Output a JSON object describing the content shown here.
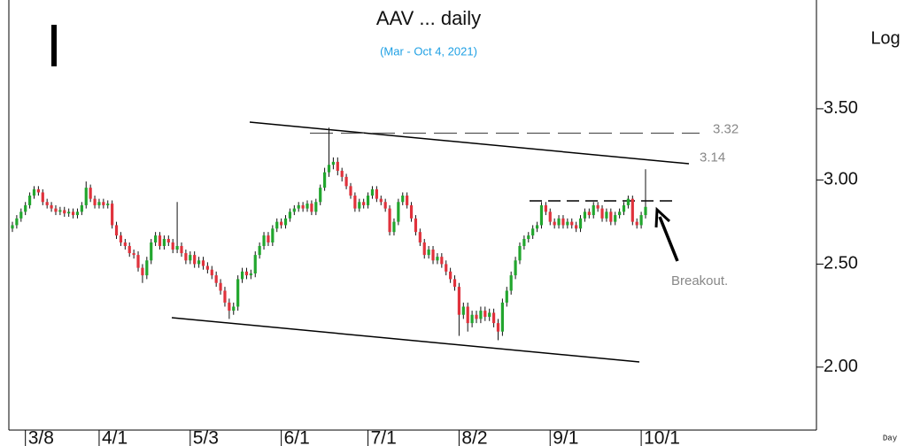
{
  "chart_data": {
    "type": "candlestick",
    "title": "AAV ... daily",
    "subtitle": "(Mar - Oct 4, 2021)",
    "y_label": "Log",
    "x_label": "Day",
    "annotation": "Breakout.",
    "levels": [
      3.32,
      3.14
    ],
    "log": true,
    "up_color": "#22a62e",
    "down_color": "#e0323c",
    "ylim": [
      1.745,
      4.43
    ],
    "yticks": [
      {
        "value": 2.0,
        "label": "2.00"
      },
      {
        "value": 2.5,
        "label": "2.50"
      },
      {
        "value": 3.0,
        "label": "3.00"
      },
      {
        "value": 3.5,
        "label": "3.50"
      }
    ],
    "categories": [
      null,
      null,
      null,
      "3/8",
      null,
      null,
      null,
      null,
      null,
      null,
      null,
      null,
      null,
      null,
      null,
      null,
      null,
      null,
      null,
      null,
      "4/1",
      null,
      null,
      null,
      null,
      null,
      null,
      null,
      null,
      null,
      null,
      null,
      null,
      null,
      null,
      null,
      null,
      null,
      null,
      null,
      null,
      "5/3",
      null,
      null,
      null,
      null,
      null,
      null,
      null,
      null,
      null,
      null,
      null,
      null,
      null,
      null,
      null,
      null,
      null,
      null,
      null,
      null,
      "6/1",
      null,
      null,
      null,
      null,
      null,
      null,
      null,
      null,
      null,
      null,
      null,
      null,
      null,
      null,
      null,
      null,
      null,
      null,
      null,
      "7/1",
      null,
      null,
      null,
      null,
      null,
      null,
      null,
      null,
      null,
      null,
      null,
      null,
      null,
      null,
      null,
      null,
      null,
      null,
      null,
      null,
      "8/2",
      null,
      null,
      null,
      null,
      null,
      null,
      null,
      null,
      null,
      null,
      null,
      null,
      null,
      null,
      null,
      null,
      null,
      null,
      null,
      null,
      "9/1",
      null,
      null,
      null,
      null,
      null,
      null,
      null,
      null,
      null,
      null,
      null,
      null,
      null,
      null,
      null,
      null,
      null,
      null,
      null,
      null,
      "10/1",
      null
    ],
    "open": [
      2.7,
      2.72,
      2.76,
      2.8,
      2.84,
      2.9,
      2.94,
      2.92,
      2.86,
      2.84,
      2.82,
      2.8,
      2.81,
      2.79,
      2.8,
      2.78,
      2.8,
      2.84,
      2.95,
      2.88,
      2.84,
      2.86,
      2.84,
      2.85,
      2.72,
      2.66,
      2.62,
      2.6,
      2.56,
      2.55,
      2.48,
      2.44,
      2.52,
      2.62,
      2.66,
      2.6,
      2.64,
      2.62,
      2.58,
      2.6,
      2.56,
      2.52,
      2.55,
      2.5,
      2.52,
      2.49,
      2.47,
      2.44,
      2.4,
      2.36,
      2.3,
      2.26,
      2.28,
      2.42,
      2.46,
      2.44,
      2.45,
      2.55,
      2.6,
      2.66,
      2.62,
      2.7,
      2.74,
      2.72,
      2.76,
      2.8,
      2.82,
      2.84,
      2.82,
      2.85,
      2.8,
      2.86,
      2.95,
      3.05,
      3.1,
      3.12,
      3.06,
      3.02,
      2.96,
      2.9,
      2.82,
      2.86,
      2.84,
      2.9,
      2.94,
      2.88,
      2.86,
      2.82,
      2.68,
      2.74,
      2.86,
      2.9,
      2.84,
      2.76,
      2.68,
      2.62,
      2.55,
      2.58,
      2.52,
      2.54,
      2.5,
      2.46,
      2.42,
      2.38,
      2.24,
      2.28,
      2.2,
      2.24,
      2.22,
      2.26,
      2.23,
      2.25,
      2.2,
      2.16,
      2.3,
      2.36,
      2.44,
      2.52,
      2.6,
      2.64,
      2.66,
      2.7,
      2.72,
      2.84,
      2.8,
      2.74,
      2.72,
      2.76,
      2.72,
      2.74,
      2.72,
      2.7,
      2.76,
      2.8,
      2.78,
      2.84,
      2.82,
      2.76,
      2.8,
      2.74,
      2.78,
      2.8,
      2.84,
      2.88,
      2.74,
      2.72,
      2.78
    ],
    "high": [
      2.74,
      2.78,
      2.82,
      2.86,
      2.92,
      2.96,
      2.96,
      2.94,
      2.88,
      2.86,
      2.84,
      2.83,
      2.83,
      2.82,
      2.82,
      2.82,
      2.86,
      2.99,
      2.97,
      2.9,
      2.88,
      2.88,
      2.87,
      2.87,
      2.74,
      2.68,
      2.64,
      2.62,
      2.58,
      2.57,
      2.5,
      2.54,
      2.64,
      2.68,
      2.68,
      2.66,
      2.66,
      2.64,
      2.86,
      2.62,
      2.58,
      2.57,
      2.57,
      2.54,
      2.54,
      2.51,
      2.49,
      2.46,
      2.42,
      2.38,
      2.32,
      2.3,
      2.44,
      2.48,
      2.48,
      2.47,
      2.57,
      2.62,
      2.68,
      2.68,
      2.72,
      2.76,
      2.76,
      2.78,
      2.82,
      2.84,
      2.86,
      2.86,
      2.87,
      2.87,
      2.88,
      2.97,
      3.08,
      3.36,
      3.15,
      3.15,
      3.08,
      3.04,
      2.98,
      2.92,
      2.88,
      2.88,
      2.92,
      2.96,
      2.96,
      2.9,
      2.88,
      2.84,
      2.76,
      2.88,
      2.92,
      2.92,
      2.86,
      2.78,
      2.7,
      2.64,
      2.6,
      2.6,
      2.56,
      2.56,
      2.52,
      2.48,
      2.44,
      2.4,
      2.3,
      2.3,
      2.26,
      2.26,
      2.28,
      2.28,
      2.27,
      2.27,
      2.22,
      2.32,
      2.38,
      2.46,
      2.54,
      2.62,
      2.66,
      2.68,
      2.72,
      2.74,
      2.86,
      2.86,
      2.82,
      2.76,
      2.78,
      2.78,
      2.76,
      2.76,
      2.74,
      2.78,
      2.82,
      2.82,
      2.86,
      2.86,
      2.84,
      2.82,
      2.82,
      2.8,
      2.82,
      2.86,
      2.9,
      2.9,
      2.76,
      2.8,
      3.07
    ],
    "low": [
      2.68,
      2.7,
      2.74,
      2.78,
      2.82,
      2.88,
      2.9,
      2.84,
      2.82,
      2.8,
      2.78,
      2.78,
      2.77,
      2.77,
      2.76,
      2.76,
      2.78,
      2.82,
      2.86,
      2.82,
      2.82,
      2.82,
      2.82,
      2.7,
      2.64,
      2.6,
      2.58,
      2.54,
      2.53,
      2.46,
      2.4,
      2.42,
      2.5,
      2.6,
      2.58,
      2.58,
      2.6,
      2.56,
      2.56,
      2.54,
      2.5,
      2.5,
      2.48,
      2.48,
      2.47,
      2.45,
      2.42,
      2.38,
      2.34,
      2.28,
      2.22,
      2.24,
      2.26,
      2.4,
      2.42,
      2.42,
      2.43,
      2.53,
      2.58,
      2.6,
      2.6,
      2.68,
      2.7,
      2.7,
      2.74,
      2.78,
      2.8,
      2.8,
      2.8,
      2.78,
      2.78,
      2.84,
      2.93,
      3.02,
      3.07,
      3.03,
      2.99,
      2.94,
      2.88,
      2.8,
      2.8,
      2.82,
      2.82,
      2.88,
      2.86,
      2.84,
      2.8,
      2.66,
      2.66,
      2.72,
      2.84,
      2.82,
      2.74,
      2.66,
      2.6,
      2.53,
      2.53,
      2.5,
      2.5,
      2.48,
      2.44,
      2.4,
      2.36,
      2.14,
      2.22,
      2.16,
      2.18,
      2.2,
      2.2,
      2.21,
      2.21,
      2.18,
      2.12,
      2.14,
      2.28,
      2.34,
      2.42,
      2.5,
      2.58,
      2.62,
      2.64,
      2.68,
      2.7,
      2.78,
      2.72,
      2.7,
      2.7,
      2.7,
      2.7,
      2.7,
      2.68,
      2.68,
      2.74,
      2.76,
      2.76,
      2.8,
      2.74,
      2.74,
      2.72,
      2.72,
      2.76,
      2.78,
      2.82,
      2.72,
      2.7,
      2.7,
      2.76
    ],
    "close": [
      2.72,
      2.76,
      2.8,
      2.84,
      2.9,
      2.94,
      2.92,
      2.86,
      2.84,
      2.82,
      2.8,
      2.81,
      2.79,
      2.8,
      2.78,
      2.8,
      2.84,
      2.95,
      2.88,
      2.84,
      2.86,
      2.84,
      2.85,
      2.72,
      2.66,
      2.62,
      2.6,
      2.56,
      2.55,
      2.48,
      2.44,
      2.52,
      2.62,
      2.66,
      2.6,
      2.64,
      2.62,
      2.58,
      2.6,
      2.56,
      2.52,
      2.55,
      2.5,
      2.52,
      2.49,
      2.47,
      2.44,
      2.4,
      2.36,
      2.3,
      2.26,
      2.28,
      2.42,
      2.46,
      2.44,
      2.45,
      2.55,
      2.6,
      2.66,
      2.62,
      2.7,
      2.74,
      2.72,
      2.76,
      2.8,
      2.82,
      2.84,
      2.82,
      2.85,
      2.8,
      2.86,
      2.95,
      3.05,
      3.1,
      3.12,
      3.06,
      3.02,
      2.96,
      2.9,
      2.82,
      2.86,
      2.84,
      2.9,
      2.94,
      2.88,
      2.86,
      2.82,
      2.68,
      2.74,
      2.86,
      2.9,
      2.84,
      2.76,
      2.68,
      2.62,
      2.55,
      2.58,
      2.52,
      2.54,
      2.5,
      2.46,
      2.42,
      2.38,
      2.24,
      2.28,
      2.2,
      2.24,
      2.22,
      2.26,
      2.23,
      2.25,
      2.2,
      2.16,
      2.3,
      2.36,
      2.44,
      2.52,
      2.6,
      2.64,
      2.66,
      2.7,
      2.72,
      2.84,
      2.8,
      2.74,
      2.72,
      2.76,
      2.72,
      2.74,
      2.72,
      2.7,
      2.76,
      2.8,
      2.78,
      2.84,
      2.82,
      2.76,
      2.8,
      2.74,
      2.78,
      2.8,
      2.84,
      2.88,
      2.74,
      2.72,
      2.78,
      2.83
    ]
  }
}
